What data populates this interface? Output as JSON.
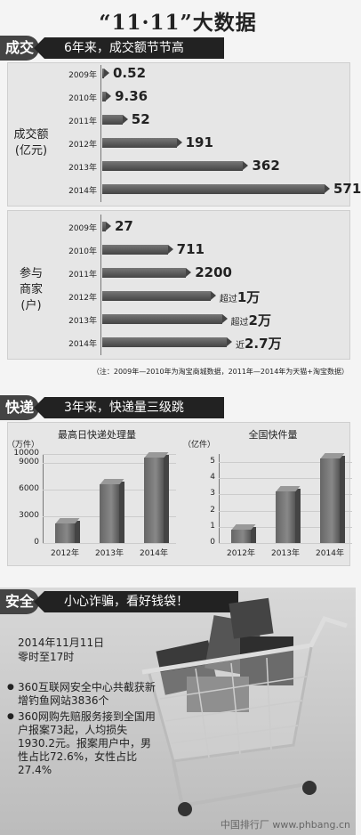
{
  "title": "“11·11”大数据",
  "section1": {
    "tag": "成交",
    "header": "6年来，成交额节节高",
    "label_line1": "成交额",
    "label_line2": "(亿元)"
  },
  "section2": {
    "label_line1": "参与",
    "label_line2": "商家",
    "label_line3": "(户)",
    "note": "（注：2009年—2010年为淘宝商城数据，2011年—2014年为天猫+淘宝数据）"
  },
  "section3": {
    "tag": "快递",
    "header": "3年来，快递量三级跳"
  },
  "section4": {
    "tag": "安全",
    "header": "小心诈骗，看好钱袋！",
    "date_line1": "2014年11月11日",
    "date_line2": "零时至17时",
    "bullet1": "360互联网安全中心共截获新增钓鱼网站3836个",
    "bullet2": "360网购先赔服务接到全国用户报案73起，人均损失1930.2元。报案用户中，男性占比72.6%，女性占比27.4%"
  },
  "watermark": "中国排行厂 www.phbang.cn",
  "chart_data": [
    {
      "type": "bar",
      "orientation": "horizontal",
      "title": "6年来，成交额节节高",
      "ylabel": "成交额(亿元)",
      "categories": [
        "2009年",
        "2010年",
        "2011年",
        "2012年",
        "2013年",
        "2014年"
      ],
      "values": [
        0.52,
        9.36,
        52,
        191,
        362,
        571
      ],
      "value_labels": [
        "0.52",
        "9.36",
        "52",
        "191",
        "362",
        "571"
      ]
    },
    {
      "type": "bar",
      "orientation": "horizontal",
      "ylabel": "参与商家(户)",
      "categories": [
        "2009年",
        "2010年",
        "2011年",
        "2012年",
        "2013年",
        "2014年"
      ],
      "values": [
        27,
        711,
        2200,
        10000,
        20000,
        27000
      ],
      "value_labels": [
        {
          "prefix": "",
          "num": "27"
        },
        {
          "prefix": "",
          "num": "711"
        },
        {
          "prefix": "",
          "num": "2200"
        },
        {
          "prefix": "超过",
          "num": "1万"
        },
        {
          "prefix": "超过",
          "num": "2万"
        },
        {
          "prefix": "近",
          "num": "2.7万"
        }
      ]
    },
    {
      "type": "bar",
      "title": "最高日快递处理量",
      "unit": "（万件）",
      "categories": [
        "2012年",
        "2013年",
        "2014年"
      ],
      "values": [
        2200,
        6600,
        9600
      ],
      "ylim": [
        0,
        10000
      ],
      "yticks": [
        "0",
        "3000",
        "6000",
        "9000",
        "10000"
      ],
      "ytick_values": [
        0,
        3000,
        6000,
        9000,
        10000
      ]
    },
    {
      "type": "bar",
      "title": "全国快件量",
      "unit": "（亿件）",
      "categories": [
        "2012年",
        "2013年",
        "2014年"
      ],
      "values": [
        0.8,
        3.2,
        5.2
      ],
      "ylim": [
        0,
        5.5
      ],
      "yticks": [
        "0",
        "1",
        "2",
        "3",
        "4",
        "5"
      ],
      "ytick_values": [
        0,
        1,
        2,
        3,
        4,
        5
      ]
    }
  ]
}
